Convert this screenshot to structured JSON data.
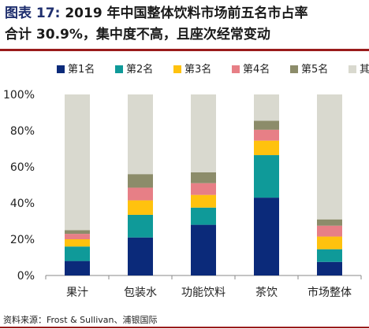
{
  "figure": {
    "label": "图表",
    "number": "17",
    "title_line1": "2019 年中国整体饮料市场前五名市占率",
    "title_line2": "合计 30.9%，集中度不高，且座次经常变动"
  },
  "source_note": "资料来源：Frost & Sullivan、浦银国际",
  "chart_data": {
    "type": "bar",
    "stacked": true,
    "categories": [
      "果汁",
      "包装水",
      "功能饮料",
      "茶饮",
      "市场整体"
    ],
    "series": [
      {
        "name": "第1名",
        "color": "#0b2a7a",
        "values": [
          8,
          21,
          28,
          43,
          7.5
        ]
      },
      {
        "name": "第2名",
        "color": "#0f9a99",
        "values": [
          8,
          12.5,
          9.5,
          23.5,
          7
        ]
      },
      {
        "name": "第3名",
        "color": "#ffc20e",
        "values": [
          4,
          8,
          7,
          8,
          7
        ]
      },
      {
        "name": "第4名",
        "color": "#e77f86",
        "values": [
          3,
          7,
          6.5,
          6,
          6
        ]
      },
      {
        "name": "第5名",
        "color": "#8c8c6a",
        "values": [
          2,
          7.5,
          6,
          5,
          3.5
        ]
      },
      {
        "name": "其他",
        "color": "#d9d9cf",
        "values": [
          75,
          44,
          43,
          14.5,
          69
        ]
      }
    ],
    "ylim": [
      0,
      100
    ],
    "yticks": [
      "0%",
      "20%",
      "40%",
      "60%",
      "80%",
      "100%"
    ],
    "ytick_values": [
      0,
      20,
      40,
      60,
      80,
      100
    ],
    "legend_position": "top",
    "grid": false
  }
}
